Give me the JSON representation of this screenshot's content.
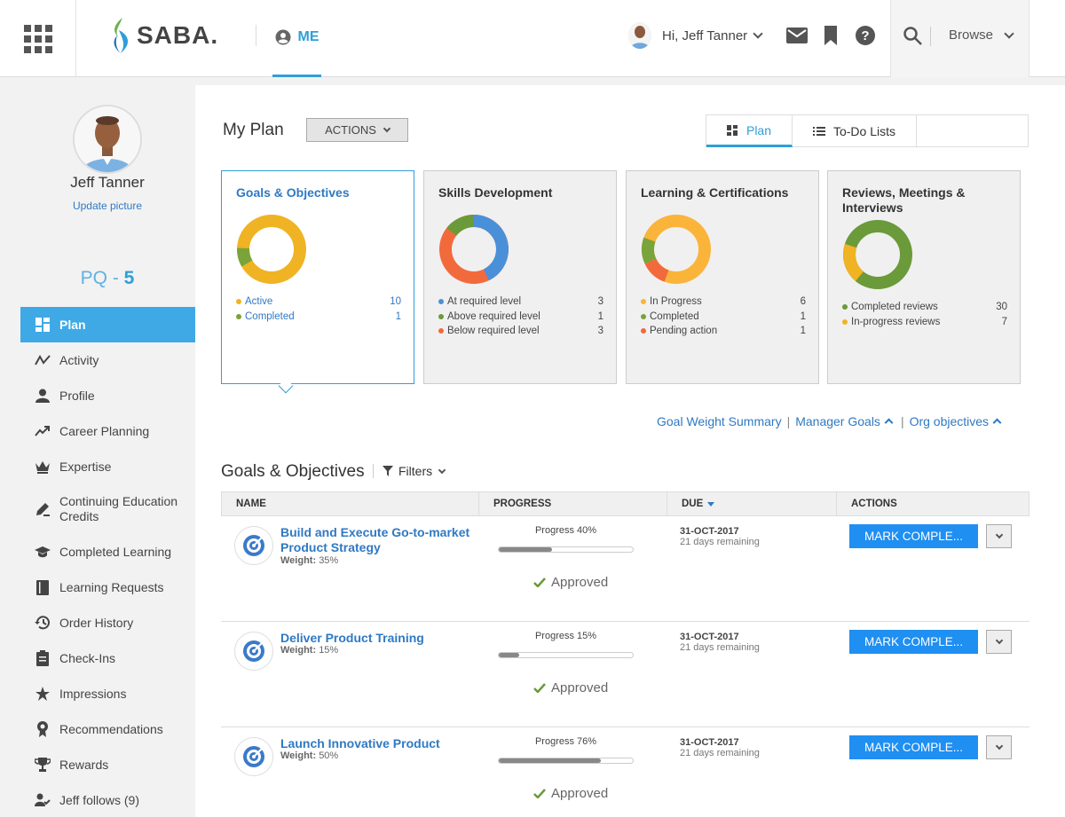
{
  "header": {
    "logo_text": "SABA.",
    "me_label": "ME",
    "greeting": "Hi, Jeff Tanner",
    "browse_label": "Browse"
  },
  "sidebar": {
    "name": "Jeff Tanner",
    "update_picture": "Update picture",
    "pq_label": "PQ - ",
    "pq_value": "5",
    "items": [
      {
        "label": "Plan",
        "icon": "plan-grid-icon"
      },
      {
        "label": "Activity",
        "icon": "activity-icon"
      },
      {
        "label": "Profile",
        "icon": "person-icon"
      },
      {
        "label": "Career Planning",
        "icon": "trend-icon"
      },
      {
        "label": "Expertise",
        "icon": "crown-icon"
      },
      {
        "label": "Continuing Education Credits",
        "icon": "pen-icon"
      },
      {
        "label": "Completed Learning",
        "icon": "graduation-cap-icon"
      },
      {
        "label": "Learning Requests",
        "icon": "book-icon"
      },
      {
        "label": "Order History",
        "icon": "history-icon"
      },
      {
        "label": "Check-Ins",
        "icon": "clipboard-icon"
      },
      {
        "label": "Impressions",
        "icon": "star-icon"
      },
      {
        "label": "Recommendations",
        "icon": "ribbon-icon"
      },
      {
        "label": "Rewards",
        "icon": "trophy-icon"
      },
      {
        "label": "Jeff follows (9)",
        "icon": "follow-icon"
      }
    ]
  },
  "main": {
    "title": "My Plan",
    "actions_label": "ACTIONS",
    "tabs": [
      {
        "label": "Plan"
      },
      {
        "label": "To-Do Lists"
      }
    ],
    "cards": [
      {
        "title": "Goals & Objectives",
        "legend": [
          {
            "label": "Active",
            "value": "10",
            "color": "#f0b323"
          },
          {
            "label": "Completed",
            "value": "1",
            "color": "#7aa33a"
          }
        ]
      },
      {
        "title": "Skills Development",
        "legend": [
          {
            "label": "At required level",
            "value": "3",
            "color": "#4a90d9"
          },
          {
            "label": "Above required level",
            "value": "1",
            "color": "#6a9a3a"
          },
          {
            "label": "Below required level",
            "value": "3",
            "color": "#f26a3b"
          }
        ]
      },
      {
        "title": "Learning & Certifications",
        "legend": [
          {
            "label": "In Progress",
            "value": "6",
            "color": "#fbb43a"
          },
          {
            "label": "Completed",
            "value": "1",
            "color": "#7aa33a"
          },
          {
            "label": "Pending action",
            "value": "1",
            "color": "#f26a3b"
          }
        ]
      },
      {
        "title": "Reviews, Meetings & Interviews",
        "legend": [
          {
            "label": "Completed reviews",
            "value": "30",
            "color": "#6a9a3a"
          },
          {
            "label": "In-progress reviews",
            "value": "7",
            "color": "#f0b323"
          }
        ]
      }
    ],
    "links": {
      "goal_weight": "Goal Weight Summary",
      "manager_goals": "Manager Goals",
      "org_objectives": "Org objectives"
    },
    "goals_section": {
      "title": "Goals & Objectives",
      "filters_label": "Filters",
      "columns": [
        "NAME",
        "PROGRESS",
        "DUE",
        "ACTIONS"
      ],
      "weight_label": "Weight:",
      "approved_label": "Approved",
      "mark_label": "MARK COMPLE...",
      "rows": [
        {
          "name": "Build and Execute Go-to-market Product Strategy",
          "weight": "35%",
          "progress_text": "Progress 40%",
          "progress": 0.4,
          "due": "31-OCT-2017",
          "remaining": "21 days remaining"
        },
        {
          "name": "Deliver Product Training",
          "weight": "15%",
          "progress_text": "Progress 15%",
          "progress": 0.15,
          "due": "31-OCT-2017",
          "remaining": "21 days remaining"
        },
        {
          "name": "Launch Innovative Product",
          "weight": "50%",
          "progress_text": "Progress 76%",
          "progress": 0.76,
          "due": "31-OCT-2017",
          "remaining": "21 days remaining"
        }
      ]
    }
  }
}
